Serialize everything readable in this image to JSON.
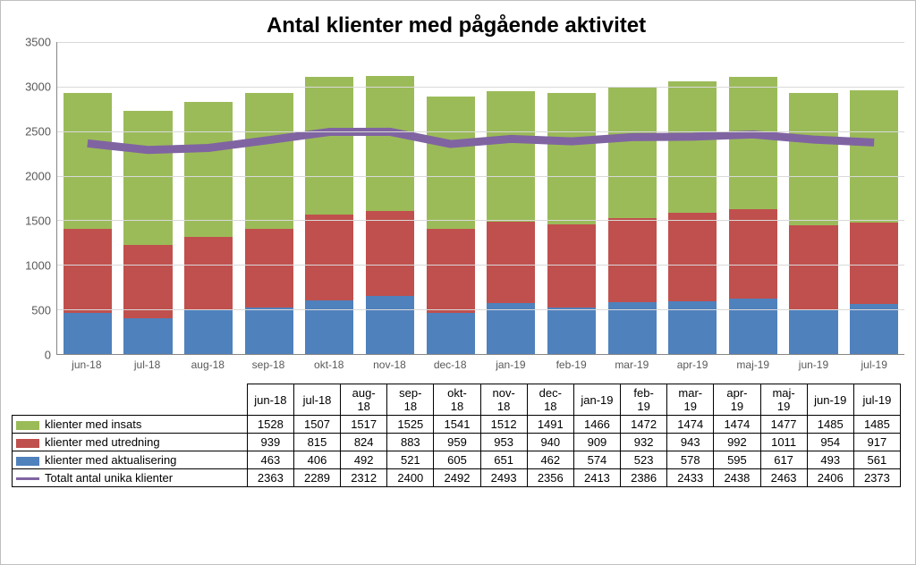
{
  "chart": {
    "title": "Antal klienter med pågående aktivitet",
    "type": "stacked-bar-with-line",
    "background_color": "#ffffff",
    "grid_color": "#d9d9d9",
    "axis_color": "#868686",
    "axis_label_color": "#595959",
    "title_fontsize": 24,
    "label_fontsize": 13,
    "categories": [
      "jun-18",
      "jul-18",
      "aug-18",
      "sep-18",
      "okt-18",
      "nov-18",
      "dec-18",
      "jan-19",
      "feb-19",
      "mar-19",
      "apr-19",
      "maj-19",
      "jun-19",
      "jul-19"
    ],
    "header_labels": [
      "jun-18",
      "jul-18",
      "aug-\n18",
      "sep-\n18",
      "okt-\n18",
      "nov-\n18",
      "dec-\n18",
      "jan-19",
      "feb-\n19",
      "mar-\n19",
      "apr-\n19",
      "maj-\n19",
      "jun-19",
      "jul-19"
    ],
    "ylim": [
      0,
      3500
    ],
    "ytick_step": 500,
    "yticks": [
      0,
      500,
      1000,
      1500,
      2000,
      2500,
      3000,
      3500
    ],
    "bar_width_ratio": 0.8,
    "series": [
      {
        "key": "insats",
        "label": "klienter med insats",
        "color": "#9bbb59",
        "swatch_type": "block",
        "values": [
          1528,
          1507,
          1517,
          1525,
          1541,
          1512,
          1491,
          1466,
          1472,
          1474,
          1474,
          1477,
          1485,
          1485
        ]
      },
      {
        "key": "utredning",
        "label": "klienter med utredning",
        "color": "#c0504d",
        "swatch_type": "block",
        "values": [
          939,
          815,
          824,
          883,
          959,
          953,
          940,
          909,
          932,
          943,
          992,
          1011,
          954,
          917
        ]
      },
      {
        "key": "aktualisering",
        "label": "klienter med aktualisering",
        "color": "#4f81bd",
        "swatch_type": "block",
        "values": [
          463,
          406,
          492,
          521,
          605,
          651,
          462,
          574,
          523,
          578,
          595,
          617,
          493,
          561
        ]
      },
      {
        "key": "totalt",
        "label": "Totalt antal unika klienter",
        "color": "#8064a2",
        "swatch_type": "line",
        "line_width": 3,
        "values": [
          2363,
          2289,
          2312,
          2400,
          2492,
          2493,
          2356,
          2413,
          2386,
          2433,
          2438,
          2463,
          2406,
          2373
        ]
      }
    ],
    "stack_order": [
      "aktualisering",
      "utredning",
      "insats"
    ],
    "line_series_key": "totalt"
  }
}
